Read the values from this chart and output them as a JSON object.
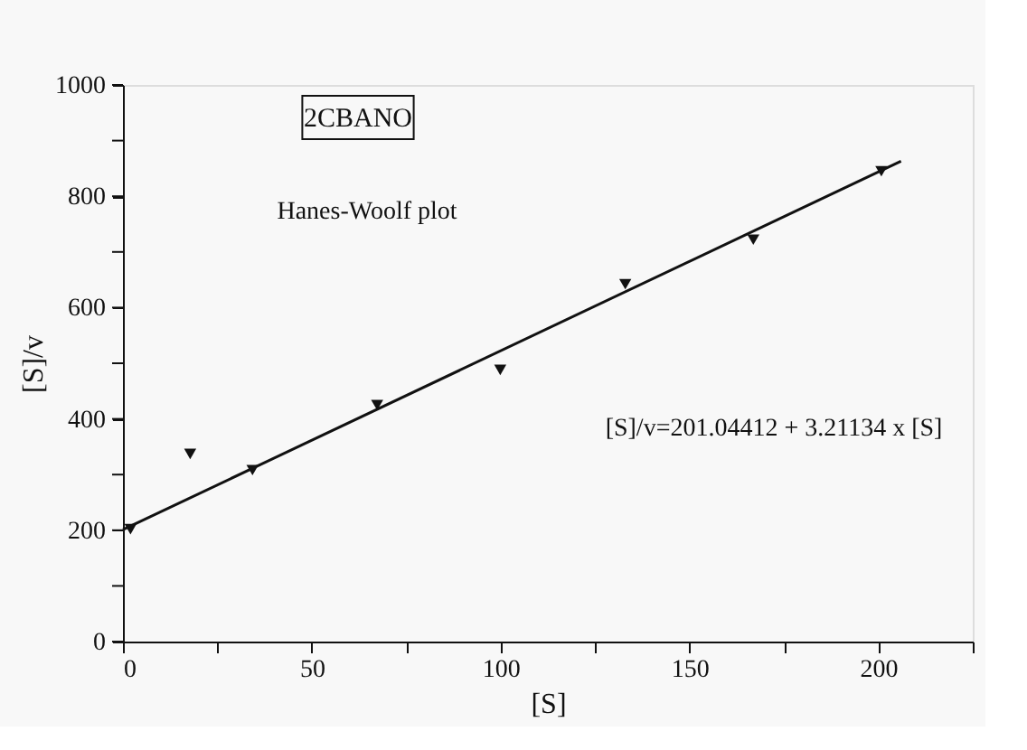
{
  "chart_data": {
    "type": "scatter",
    "xlabel": "[S]",
    "ylabel": "[S]/v",
    "annotations": [
      "2CBANO",
      "Hanes-Woolf plot",
      "[S]/v=201.04412 + 3.21134 x [S]"
    ],
    "x": [
      2,
      17.8,
      34.3,
      67.3,
      99.9,
      133,
      166.9,
      200.8
    ],
    "series": [
      {
        "color": "#111111",
        "marker": "triangle",
        "values": [
          202,
          337,
          308,
          425,
          488,
          642,
          722,
          845
        ]
      },
      {
        "type": "line",
        "color": "#111111",
        "x": [
          0,
          206
        ],
        "values": [
          201,
          863
        ]
      }
    ],
    "xlim": [
      0,
      225
    ],
    "ylim": [
      0,
      1000
    ],
    "xticks": [
      0,
      {
        "value": 25,
        "label": null
      },
      50,
      {
        "value": 75,
        "label": null
      },
      100,
      {
        "value": 125,
        "label": null
      },
      150,
      {
        "value": 175,
        "label": null
      },
      200,
      {
        "value": 225,
        "label": null
      }
    ],
    "yticks": [
      0,
      {
        "value": 100,
        "label": null
      },
      200,
      {
        "value": 300,
        "label": null
      },
      400,
      {
        "value": 500,
        "label": null
      },
      600,
      {
        "value": 700,
        "label": null
      },
      800,
      {
        "value": 900,
        "label": null
      },
      1000
    ],
    "grid": false
  }
}
